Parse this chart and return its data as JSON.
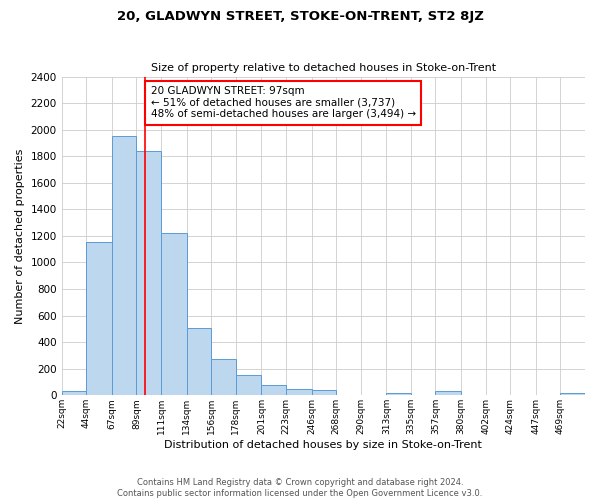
{
  "title": "20, GLADWYN STREET, STOKE-ON-TRENT, ST2 8JZ",
  "subtitle": "Size of property relative to detached houses in Stoke-on-Trent",
  "xlabel": "Distribution of detached houses by size in Stoke-on-Trent",
  "ylabel": "Number of detached properties",
  "bar_labels": [
    "22sqm",
    "44sqm",
    "67sqm",
    "89sqm",
    "111sqm",
    "134sqm",
    "156sqm",
    "178sqm",
    "201sqm",
    "223sqm",
    "246sqm",
    "268sqm",
    "290sqm",
    "313sqm",
    "335sqm",
    "357sqm",
    "380sqm",
    "402sqm",
    "424sqm",
    "447sqm",
    "469sqm"
  ],
  "bar_values": [
    30,
    1155,
    1950,
    1840,
    1225,
    510,
    275,
    150,
    80,
    50,
    40,
    5,
    5,
    20,
    5,
    30,
    5,
    5,
    5,
    5,
    20
  ],
  "bar_color": "#bdd7ee",
  "bar_edge_color": "#5b9bd5",
  "vline_x": 97,
  "annotation_title": "20 GLADWYN STREET: 97sqm",
  "annotation_line1": "← 51% of detached houses are smaller (3,737)",
  "annotation_line2": "48% of semi-detached houses are larger (3,494) →",
  "ylim": [
    0,
    2400
  ],
  "yticks": [
    0,
    200,
    400,
    600,
    800,
    1000,
    1200,
    1400,
    1600,
    1800,
    2000,
    2200,
    2400
  ],
  "footer_line1": "Contains HM Land Registry data © Crown copyright and database right 2024.",
  "footer_line2": "Contains public sector information licensed under the Open Government Licence v3.0.",
  "bin_edges": [
    22,
    44,
    67,
    89,
    111,
    134,
    156,
    178,
    201,
    223,
    246,
    268,
    290,
    313,
    335,
    357,
    380,
    402,
    424,
    447,
    469,
    491
  ]
}
